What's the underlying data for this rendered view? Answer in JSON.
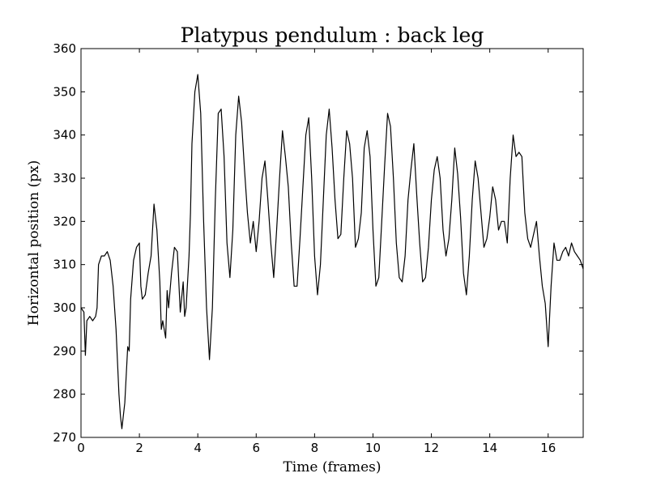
{
  "chart_data": {
    "type": "line",
    "title": "Platypus pendulum : back leg",
    "xlabel": "Time (frames)",
    "ylabel": "Horizontal position (px)",
    "xlim": [
      0,
      17.2
    ],
    "ylim": [
      270,
      360
    ],
    "xticks": [
      "0",
      "2",
      "4",
      "6",
      "8",
      "10",
      "12",
      "14",
      "16"
    ],
    "yticks": [
      "270",
      "280",
      "290",
      "300",
      "310",
      "320",
      "330",
      "340",
      "350",
      "360"
    ],
    "grid": false,
    "line_color": "#000000",
    "series": [
      {
        "x": [
          0,
          0.1,
          0.15,
          0.2,
          0.3,
          0.4,
          0.5,
          0.55,
          0.6,
          0.7,
          0.8,
          0.9,
          1.0,
          1.1,
          1.2,
          1.3,
          1.35,
          1.4,
          1.5,
          1.6,
          1.65,
          1.7,
          1.8,
          1.9,
          2.0,
          2.05,
          2.1,
          2.2,
          2.3,
          2.4,
          2.5,
          2.6,
          2.7,
          2.75,
          2.8,
          2.9,
          2.95,
          3.0,
          3.1,
          3.2,
          3.3,
          3.4,
          3.5,
          3.55,
          3.6,
          3.7,
          3.75,
          3.8,
          3.9,
          4.0,
          4.1,
          4.2,
          4.3,
          4.4,
          4.5,
          4.6,
          4.7,
          4.8,
          4.9,
          5.0,
          5.1,
          5.2,
          5.3,
          5.4,
          5.5,
          5.6,
          5.7,
          5.8,
          5.9,
          6.0,
          6.1,
          6.2,
          6.3,
          6.4,
          6.5,
          6.6,
          6.7,
          6.8,
          6.9,
          7.0,
          7.1,
          7.2,
          7.3,
          7.4,
          7.5,
          7.6,
          7.7,
          7.8,
          7.9,
          8.0,
          8.1,
          8.2,
          8.3,
          8.4,
          8.5,
          8.6,
          8.7,
          8.8,
          8.9,
          9.0,
          9.1,
          9.2,
          9.3,
          9.4,
          9.5,
          9.6,
          9.7,
          9.8,
          9.9,
          10.0,
          10.1,
          10.2,
          10.3,
          10.4,
          10.5,
          10.6,
          10.7,
          10.8,
          10.9,
          11.0,
          11.1,
          11.2,
          11.3,
          11.4,
          11.5,
          11.6,
          11.7,
          11.8,
          11.9,
          12.0,
          12.1,
          12.2,
          12.3,
          12.4,
          12.5,
          12.6,
          12.7,
          12.8,
          12.9,
          13.0,
          13.1,
          13.2,
          13.3,
          13.4,
          13.5,
          13.6,
          13.7,
          13.8,
          13.9,
          14.0,
          14.1,
          14.2,
          14.3,
          14.4,
          14.5,
          14.6,
          14.7,
          14.8,
          14.9,
          15.0,
          15.1,
          15.2,
          15.3,
          15.4,
          15.5,
          15.6,
          15.7,
          15.8,
          15.9,
          16.0,
          16.1,
          16.2,
          16.3,
          16.4,
          16.5,
          16.6,
          16.7,
          16.8,
          16.9,
          17.0,
          17.1,
          17.2
        ],
        "y": [
          300,
          299,
          289,
          297,
          298,
          297,
          298,
          300,
          310,
          312,
          312,
          313,
          311,
          305,
          295,
          280,
          275,
          272,
          278,
          291,
          290,
          302,
          311,
          314,
          315,
          305,
          302,
          303,
          308,
          312,
          324,
          318,
          306,
          295,
          297,
          293,
          304,
          300,
          308,
          314,
          313,
          299,
          306,
          298,
          300,
          312,
          322,
          338,
          350,
          354,
          345,
          320,
          300,
          288,
          300,
          325,
          345,
          346,
          335,
          315,
          307,
          318,
          340,
          349,
          343,
          332,
          322,
          315,
          320,
          313,
          320,
          330,
          334,
          325,
          315,
          307,
          318,
          330,
          341,
          335,
          328,
          315,
          305,
          305,
          316,
          328,
          340,
          344,
          330,
          312,
          303,
          310,
          325,
          340,
          346,
          337,
          325,
          316,
          317,
          330,
          341,
          338,
          330,
          314,
          316,
          322,
          337,
          341,
          335,
          318,
          305,
          307,
          320,
          333,
          345,
          342,
          330,
          315,
          307,
          306,
          312,
          325,
          332,
          338,
          326,
          315,
          306,
          307,
          314,
          325,
          332,
          335,
          330,
          318,
          312,
          316,
          325,
          337,
          331,
          321,
          308,
          303,
          312,
          325,
          334,
          330,
          322,
          314,
          316,
          321,
          328,
          325,
          318,
          320,
          320,
          315,
          330,
          340,
          335,
          336,
          335,
          322,
          316,
          314,
          317,
          320,
          312,
          305,
          301,
          291,
          305,
          315,
          311,
          311,
          313,
          314,
          312,
          315,
          313,
          312,
          311,
          309
        ]
      }
    ]
  }
}
